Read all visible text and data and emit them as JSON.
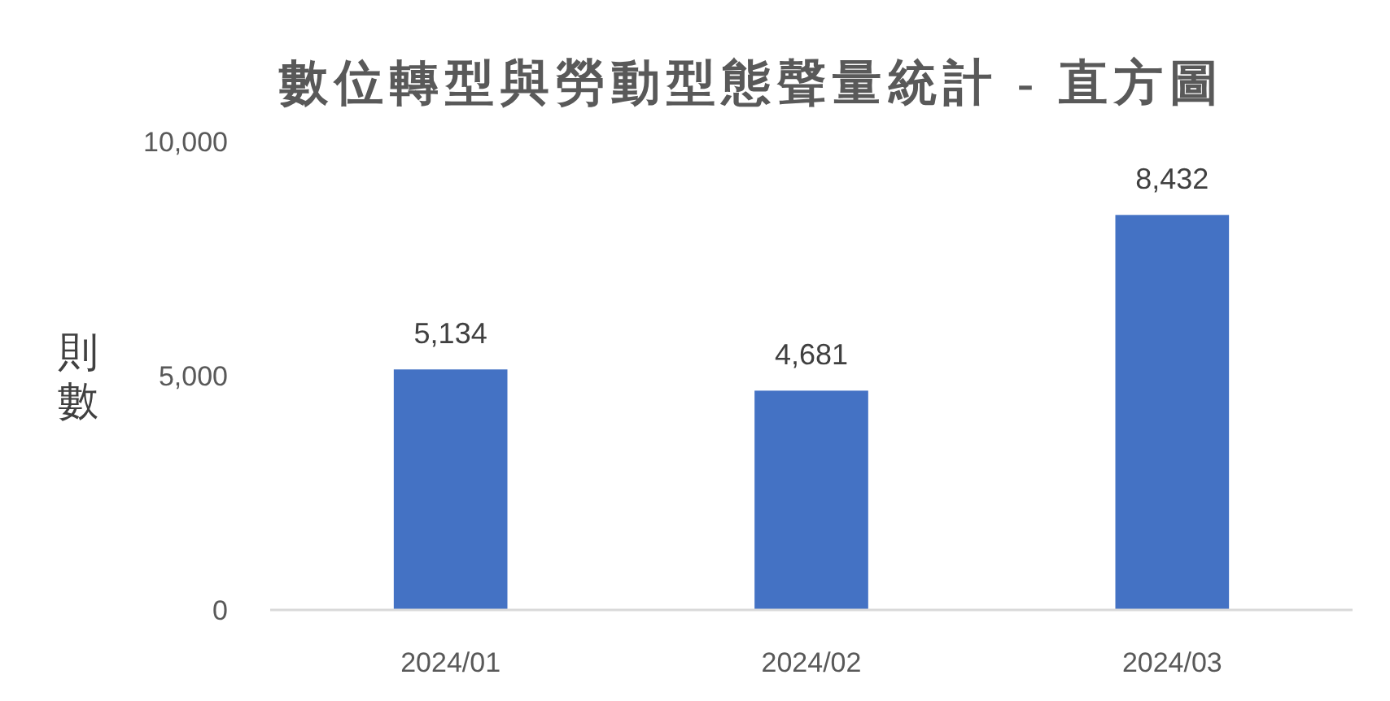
{
  "chart_data": {
    "type": "bar",
    "title": "數位轉型與勞動型態聲量統計 - 直方圖",
    "ylabel": "則數",
    "categories": [
      "2024/01",
      "2024/02",
      "2024/03"
    ],
    "series": [
      {
        "color": "#4472c4",
        "values": [
          5134,
          4681,
          8432
        ]
      }
    ],
    "value_labels": [
      "5,134",
      "4,681",
      "8,432"
    ],
    "ylim": [
      0,
      10000
    ],
    "yticks": [
      {
        "value": 0,
        "label": "0"
      },
      {
        "value": 5000,
        "label": "5,000"
      },
      {
        "value": 10000,
        "label": "10,000"
      }
    ],
    "grid": false
  }
}
